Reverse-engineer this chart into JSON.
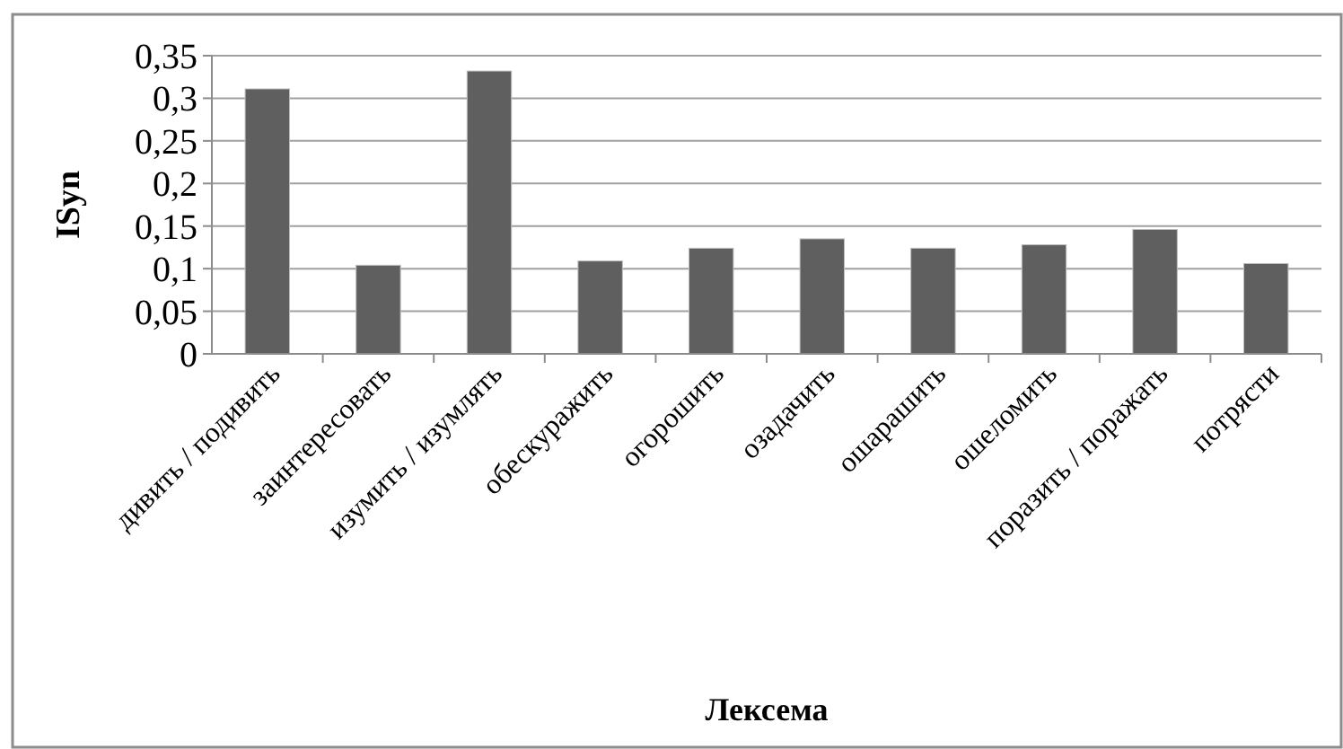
{
  "chart_data": {
    "type": "bar",
    "xlabel": "Лексема",
    "ylabel": "ISyn",
    "categories": [
      "дивить / подивить",
      "заинтересовать",
      "изумить / изумлять",
      "обескуражить",
      "огорошить",
      "озадачить",
      "ошарашить",
      "ошеломить",
      "поразить / поражать",
      "потрясти"
    ],
    "values": [
      0.311,
      0.104,
      0.332,
      0.109,
      0.124,
      0.135,
      0.124,
      0.128,
      0.146,
      0.106
    ],
    "color": "#5f5f5f",
    "ylim": [
      0,
      0.35
    ],
    "yticks": [
      {
        "value": 0,
        "label": "0"
      },
      {
        "value": 0.05,
        "label": "0,05"
      },
      {
        "value": 0.1,
        "label": "0,1"
      },
      {
        "value": 0.15,
        "label": "0,15"
      },
      {
        "value": 0.2,
        "label": "0,2"
      },
      {
        "value": 0.25,
        "label": "0,25"
      },
      {
        "value": 0.3,
        "label": "0,3"
      },
      {
        "value": 0.35,
        "label": "0,35"
      }
    ],
    "grid": "y"
  }
}
